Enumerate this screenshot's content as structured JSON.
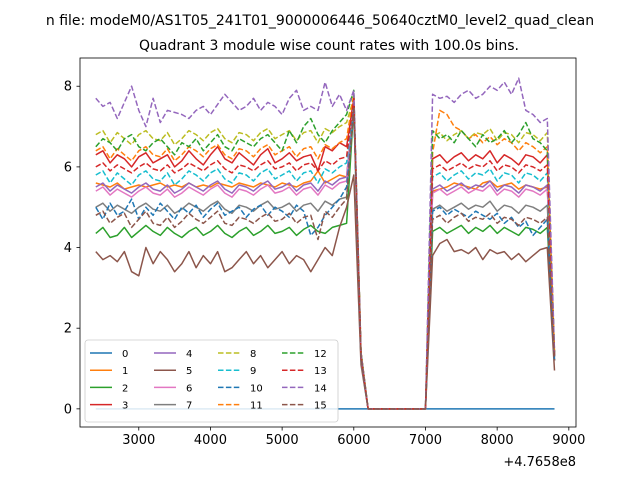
{
  "chart_data": {
    "type": "line",
    "suptitle": "n file: modeM0/AS1T05_241T01_9000006446_50640cztM0_level2_quad_clean",
    "title": "Quadrant 3 module wise count rates with 100.0s bins.",
    "xlabel": "",
    "ylabel": "",
    "x_offset_label": "+4.7658e8",
    "xlim": [
      2180,
      9100
    ],
    "ylim": [
      -0.45,
      8.7
    ],
    "xticks": [
      3000,
      4000,
      5000,
      6000,
      7000,
      8000,
      9000
    ],
    "xtick_labels": [
      "3000",
      "4000",
      "5000",
      "6000",
      "7000",
      "8000",
      "9000"
    ],
    "yticks": [
      0,
      2,
      4,
      6,
      8
    ],
    "ytick_labels": [
      "0",
      "2",
      "4",
      "6",
      "8"
    ],
    "grid": false,
    "legend": {
      "placement": "lower-left",
      "columns": 4
    },
    "x_step": 100,
    "x_start": 2400,
    "series": [
      {
        "name": "0",
        "color": "#1f77b4",
        "dash": "solid",
        "values": [
          0,
          0,
          0,
          0,
          0,
          0,
          0,
          0,
          0,
          0,
          0,
          0,
          0,
          0,
          0,
          0,
          0,
          0,
          0,
          0,
          0,
          0,
          0,
          0,
          0,
          0,
          0,
          0,
          0,
          0,
          0,
          0,
          0,
          0,
          0,
          0,
          0,
          0,
          0,
          0,
          0,
          0,
          0,
          0,
          0,
          0,
          0,
          0,
          0,
          0,
          0,
          0,
          0,
          0,
          0,
          0,
          0,
          0,
          0,
          0,
          0,
          0,
          0,
          0,
          0
        ]
      },
      {
        "name": "1",
        "color": "#ff7f0e",
        "dash": "solid",
        "values": [
          5.6,
          5.55,
          5.5,
          5.6,
          5.45,
          5.5,
          5.55,
          5.5,
          5.55,
          5.6,
          5.5,
          5.55,
          5.5,
          5.6,
          5.5,
          5.55,
          5.5,
          5.6,
          5.55,
          5.5,
          5.6,
          5.55,
          5.5,
          5.6,
          5.55,
          5.5,
          5.6,
          5.55,
          5.5,
          5.6,
          5.65,
          5.9,
          5.6,
          5.7,
          5.8,
          5.75,
          7.6,
          1.4,
          0,
          0,
          0,
          0,
          0,
          0,
          0,
          0,
          0,
          5.4,
          5.45,
          5.5,
          5.6,
          5.55,
          5.5,
          5.45,
          5.6,
          5.65,
          5.5,
          5.55,
          5.6,
          5.45,
          5.55,
          5.5,
          5.45,
          5.5,
          1.3
        ]
      },
      {
        "name": "2",
        "color": "#2ca02c",
        "dash": "solid",
        "values": [
          4.35,
          4.5,
          4.25,
          4.3,
          4.5,
          4.25,
          4.4,
          4.55,
          4.4,
          4.3,
          4.5,
          4.35,
          4.25,
          4.4,
          4.5,
          4.3,
          4.4,
          4.55,
          4.35,
          4.25,
          4.4,
          4.5,
          4.3,
          4.4,
          4.55,
          4.35,
          4.4,
          4.5,
          4.3,
          4.45,
          4.55,
          4.4,
          4.35,
          4.5,
          4.55,
          4.6,
          7.5,
          1.2,
          0,
          0,
          0,
          0,
          0,
          0,
          0,
          0,
          0,
          4.4,
          4.5,
          4.35,
          4.45,
          4.55,
          4.35,
          4.5,
          4.4,
          4.55,
          4.35,
          4.5,
          4.4,
          4.3,
          4.5,
          4.45,
          4.35,
          4.5,
          1.3
        ]
      },
      {
        "name": "3",
        "color": "#d62728",
        "dash": "solid",
        "values": [
          6.3,
          6.4,
          6.1,
          6.3,
          6.2,
          6.0,
          6.25,
          6.35,
          6.1,
          6.2,
          6.3,
          6.0,
          6.15,
          6.4,
          6.2,
          6.05,
          6.3,
          6.5,
          6.2,
          6.1,
          6.35,
          6.2,
          6.05,
          6.3,
          6.45,
          6.1,
          6.2,
          6.35,
          6.15,
          6.25,
          6.3,
          5.9,
          6.5,
          6.4,
          6.6,
          6.5,
          7.7,
          1.3,
          0,
          0,
          0,
          0,
          0,
          0,
          0,
          0,
          0,
          6.2,
          6.3,
          6.1,
          6.25,
          6.35,
          6.15,
          6.3,
          6.2,
          6.4,
          6.1,
          6.3,
          6.2,
          6.05,
          6.3,
          6.25,
          6.1,
          6.3,
          1.3
        ]
      },
      {
        "name": "4",
        "color": "#9467bd",
        "dash": "solid",
        "values": [
          5.5,
          5.6,
          5.4,
          5.55,
          5.45,
          5.35,
          5.5,
          5.6,
          5.45,
          5.4,
          5.55,
          5.35,
          5.45,
          5.6,
          5.5,
          5.4,
          5.55,
          5.65,
          5.45,
          5.35,
          5.55,
          5.5,
          5.4,
          5.55,
          5.65,
          5.45,
          5.5,
          5.6,
          5.4,
          5.55,
          5.6,
          5.4,
          5.65,
          5.55,
          5.7,
          5.75,
          7.6,
          1.3,
          0,
          0,
          0,
          0,
          0,
          0,
          0,
          0,
          0,
          5.45,
          5.55,
          5.4,
          5.5,
          5.6,
          5.45,
          5.55,
          5.5,
          5.65,
          5.4,
          5.55,
          5.5,
          5.35,
          5.55,
          5.5,
          5.4,
          5.55,
          1.3
        ]
      },
      {
        "name": "5",
        "color": "#8c564b",
        "dash": "solid",
        "values": [
          3.9,
          3.7,
          3.8,
          3.65,
          3.9,
          3.4,
          3.3,
          4.0,
          3.6,
          3.9,
          3.7,
          3.4,
          3.6,
          3.9,
          3.5,
          3.8,
          3.6,
          3.9,
          3.4,
          3.5,
          3.7,
          3.9,
          3.6,
          3.8,
          3.5,
          3.7,
          3.9,
          3.6,
          3.8,
          3.7,
          3.4,
          3.7,
          4.0,
          3.8,
          4.5,
          5.0,
          5.8,
          1.1,
          0,
          0,
          0,
          0,
          0,
          0,
          0,
          0,
          0,
          3.8,
          4.1,
          4.2,
          3.9,
          3.95,
          3.85,
          4.0,
          3.7,
          3.95,
          3.85,
          3.9,
          3.7,
          3.85,
          3.65,
          3.8,
          3.95,
          4.0,
          0.95
        ]
      },
      {
        "name": "6",
        "color": "#e377c2",
        "dash": "solid",
        "values": [
          5.4,
          5.5,
          5.3,
          5.45,
          5.35,
          5.25,
          5.4,
          5.5,
          5.35,
          5.3,
          5.45,
          5.25,
          5.35,
          5.5,
          5.4,
          5.3,
          5.45,
          5.55,
          5.35,
          5.25,
          5.45,
          5.4,
          5.3,
          5.45,
          5.55,
          5.35,
          5.4,
          5.5,
          5.3,
          5.45,
          5.5,
          5.3,
          5.55,
          5.45,
          5.6,
          5.65,
          7.6,
          1.3,
          0,
          0,
          0,
          0,
          0,
          0,
          0,
          0,
          0,
          5.35,
          5.45,
          5.3,
          5.4,
          5.5,
          5.35,
          5.45,
          5.4,
          5.55,
          5.3,
          5.45,
          5.4,
          5.25,
          5.45,
          5.4,
          5.3,
          5.45,
          1.3
        ]
      },
      {
        "name": "7",
        "color": "#7f7f7f",
        "dash": "solid",
        "values": [
          5.0,
          5.1,
          4.9,
          5.05,
          4.95,
          4.85,
          5.0,
          5.1,
          4.95,
          4.9,
          5.05,
          4.85,
          4.95,
          5.1,
          5.0,
          4.9,
          5.05,
          5.15,
          4.95,
          4.85,
          5.05,
          5.0,
          4.9,
          5.05,
          5.15,
          4.95,
          5.0,
          5.1,
          4.9,
          5.05,
          5.1,
          4.9,
          5.15,
          5.05,
          5.2,
          5.25,
          7.5,
          1.2,
          0,
          0,
          0,
          0,
          0,
          0,
          0,
          0,
          0,
          4.95,
          5.05,
          4.9,
          5.0,
          5.1,
          4.95,
          5.05,
          5.0,
          5.15,
          4.9,
          5.05,
          5.0,
          4.85,
          5.05,
          5.0,
          4.9,
          5.05,
          1.2
        ]
      },
      {
        "name": "8",
        "color": "#bcbd22",
        "dash": "dashed",
        "values": [
          6.8,
          6.9,
          6.6,
          6.85,
          6.7,
          6.55,
          6.8,
          6.9,
          6.7,
          6.65,
          6.85,
          6.55,
          6.7,
          6.9,
          6.8,
          6.65,
          6.85,
          6.95,
          6.7,
          6.6,
          6.85,
          6.8,
          6.65,
          6.85,
          6.95,
          6.7,
          6.8,
          6.9,
          6.65,
          6.85,
          6.9,
          6.6,
          6.95,
          6.85,
          7.0,
          7.1,
          7.7,
          1.4,
          0,
          0,
          0,
          0,
          0,
          0,
          0,
          0,
          0,
          6.75,
          6.85,
          6.65,
          6.8,
          6.9,
          6.7,
          6.85,
          6.8,
          6.95,
          6.65,
          6.85,
          6.8,
          6.6,
          6.85,
          6.8,
          6.65,
          6.85,
          1.4
        ]
      },
      {
        "name": "9",
        "color": "#17becf",
        "dash": "dashed",
        "values": [
          5.8,
          5.9,
          5.6,
          5.85,
          5.7,
          5.55,
          5.8,
          5.9,
          5.7,
          5.65,
          5.85,
          5.55,
          5.7,
          5.9,
          5.8,
          5.65,
          5.85,
          5.95,
          5.7,
          5.6,
          5.85,
          5.8,
          5.65,
          5.85,
          5.95,
          5.7,
          5.8,
          5.9,
          5.65,
          5.85,
          5.9,
          5.6,
          5.95,
          5.85,
          6.0,
          6.1,
          7.6,
          1.3,
          0,
          0,
          0,
          0,
          0,
          0,
          0,
          0,
          0,
          5.75,
          5.85,
          5.65,
          5.8,
          5.9,
          5.7,
          5.85,
          5.8,
          5.95,
          5.65,
          5.85,
          5.8,
          5.6,
          5.85,
          5.8,
          5.65,
          5.85,
          1.3
        ]
      },
      {
        "name": "10",
        "color": "#1f77b4",
        "dash": "dashed",
        "values": [
          5.0,
          4.7,
          5.1,
          4.8,
          4.9,
          5.2,
          4.7,
          5.0,
          4.8,
          5.1,
          4.9,
          4.7,
          5.0,
          4.85,
          5.05,
          4.75,
          4.95,
          5.1,
          4.8,
          4.9,
          5.0,
          4.75,
          4.95,
          5.05,
          4.8,
          5.0,
          4.9,
          4.75,
          5.05,
          4.9,
          4.3,
          4.5,
          4.8,
          5.0,
          5.2,
          5.5,
          7.4,
          1.3,
          0,
          0,
          0,
          0,
          0,
          0,
          0,
          0,
          0,
          4.9,
          5.0,
          4.8,
          4.95,
          4.85,
          4.75,
          4.9,
          4.8,
          4.7,
          4.85,
          4.6,
          4.75,
          4.5,
          4.65,
          4.3,
          4.5,
          4.7,
          1.2
        ]
      },
      {
        "name": "11",
        "color": "#ff7f0e",
        "dash": "dashed",
        "values": [
          6.4,
          6.5,
          6.2,
          6.45,
          6.3,
          6.15,
          6.4,
          6.5,
          6.3,
          6.25,
          6.45,
          6.15,
          6.3,
          6.5,
          6.4,
          6.25,
          6.45,
          6.55,
          6.3,
          6.2,
          6.45,
          6.4,
          6.25,
          6.45,
          6.55,
          6.3,
          6.4,
          6.5,
          6.25,
          6.45,
          6.5,
          6.2,
          6.55,
          6.45,
          6.6,
          6.7,
          7.8,
          1.4,
          0,
          0,
          0,
          0,
          0,
          0,
          0,
          0,
          0,
          6.35,
          7.4,
          7.3,
          7.0,
          6.9,
          6.7,
          6.8,
          6.6,
          6.75,
          6.55,
          6.7,
          6.6,
          6.4,
          6.6,
          6.5,
          6.35,
          6.5,
          1.4
        ]
      },
      {
        "name": "12",
        "color": "#2ca02c",
        "dash": "dashed",
        "values": [
          6.5,
          6.7,
          6.6,
          6.4,
          6.7,
          6.8,
          6.5,
          6.4,
          6.6,
          6.7,
          6.5,
          6.3,
          6.6,
          6.5,
          6.7,
          6.4,
          6.6,
          6.8,
          6.5,
          6.4,
          6.7,
          6.6,
          6.5,
          6.7,
          6.8,
          6.6,
          6.4,
          6.9,
          6.6,
          7.0,
          7.2,
          6.8,
          6.6,
          6.9,
          7.1,
          7.3,
          7.9,
          1.4,
          0,
          0,
          0,
          0,
          0,
          0,
          0,
          0,
          0,
          6.9,
          6.7,
          6.8,
          6.6,
          6.9,
          6.7,
          6.5,
          6.8,
          6.6,
          6.7,
          6.9,
          6.6,
          6.8,
          7.1,
          6.7,
          6.6,
          6.4,
          1.4
        ]
      },
      {
        "name": "13",
        "color": "#d62728",
        "dash": "dashed",
        "values": [
          6.0,
          6.1,
          5.9,
          6.05,
          5.95,
          5.85,
          6.0,
          6.1,
          5.95,
          5.9,
          6.05,
          5.85,
          5.95,
          6.1,
          6.0,
          5.9,
          6.05,
          6.15,
          5.95,
          5.85,
          6.05,
          6.0,
          5.9,
          6.05,
          6.15,
          5.95,
          6.0,
          6.1,
          5.9,
          6.05,
          6.1,
          5.9,
          6.15,
          6.05,
          6.2,
          6.25,
          7.7,
          1.3,
          0,
          0,
          0,
          0,
          0,
          0,
          0,
          0,
          0,
          5.95,
          6.05,
          5.9,
          6.0,
          6.1,
          5.95,
          6.05,
          6.0,
          6.15,
          5.9,
          6.05,
          6.0,
          5.85,
          6.05,
          6.0,
          5.9,
          6.05,
          1.3
        ]
      },
      {
        "name": "14",
        "color": "#9467bd",
        "dash": "dashed",
        "values": [
          7.7,
          7.5,
          7.6,
          7.2,
          7.6,
          8.0,
          7.4,
          7.0,
          7.7,
          7.1,
          7.4,
          7.35,
          7.3,
          7.2,
          7.4,
          7.5,
          7.3,
          7.55,
          7.8,
          7.6,
          7.4,
          7.5,
          7.7,
          7.4,
          7.6,
          7.5,
          7.3,
          7.7,
          7.9,
          7.4,
          7.5,
          7.4,
          8.1,
          7.5,
          7.8,
          7.4,
          7.9,
          1.4,
          0,
          0,
          0,
          0,
          0,
          0,
          0,
          0,
          0,
          7.8,
          7.7,
          7.75,
          7.6,
          7.8,
          7.9,
          7.7,
          7.8,
          8.0,
          7.9,
          8.1,
          7.8,
          8.2,
          7.4,
          7.3,
          7.1,
          7.2,
          1.4
        ]
      },
      {
        "name": "15",
        "color": "#8c564b",
        "dash": "dashed",
        "values": [
          4.8,
          4.9,
          4.6,
          4.75,
          4.85,
          4.5,
          4.7,
          4.9,
          4.6,
          4.55,
          4.75,
          4.5,
          4.65,
          4.85,
          4.7,
          4.6,
          4.75,
          4.9,
          4.6,
          4.55,
          4.75,
          4.7,
          4.6,
          4.75,
          4.85,
          4.65,
          4.7,
          4.85,
          4.6,
          4.75,
          4.8,
          4.2,
          4.9,
          4.75,
          5.0,
          5.2,
          7.5,
          1.3,
          0,
          0,
          0,
          0,
          0,
          0,
          0,
          0,
          0,
          4.7,
          4.8,
          4.6,
          4.75,
          4.85,
          4.65,
          4.75,
          4.7,
          4.85,
          4.6,
          4.75,
          4.7,
          4.55,
          4.75,
          4.7,
          4.6,
          4.75,
          1.2
        ]
      }
    ]
  }
}
